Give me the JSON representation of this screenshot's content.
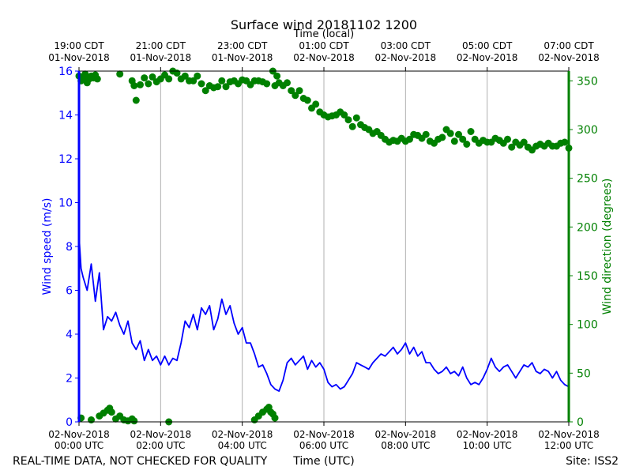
{
  "chart_data": {
    "type": "line",
    "title": "Surface wind 20181102 1200",
    "top_axis_label": "Time (local)",
    "xlabel": "Time (UTC)",
    "ylabel_left": "Wind speed (m/s)",
    "ylabel_right": "Wind direction (degrees)",
    "footer_left": "REAL-TIME DATA, NOT CHECKED FOR QUALITY",
    "footer_right": "Site: ISS2",
    "x_range_hours": [
      0,
      12
    ],
    "ylim_left": [
      0,
      16
    ],
    "ylim_right": [
      0,
      360
    ],
    "grid": "vertical",
    "colors": {
      "speed": "#0000ff",
      "direction": "#008000",
      "grid": "#b0b0b0",
      "frame": "#000000"
    },
    "bottom_ticks": [
      {
        "h": 0,
        "date": "02-Nov-2018",
        "time": "00:00 UTC"
      },
      {
        "h": 2,
        "date": "02-Nov-2018",
        "time": "02:00 UTC"
      },
      {
        "h": 4,
        "date": "02-Nov-2018",
        "time": "04:00 UTC"
      },
      {
        "h": 6,
        "date": "02-Nov-2018",
        "time": "06:00 UTC"
      },
      {
        "h": 8,
        "date": "02-Nov-2018",
        "time": "08:00 UTC"
      },
      {
        "h": 10,
        "date": "02-Nov-2018",
        "time": "10:00 UTC"
      },
      {
        "h": 12,
        "date": "02-Nov-2018",
        "time": "12:00 UTC"
      }
    ],
    "top_ticks": [
      {
        "h": 0,
        "time": "19:00 CDT",
        "date": "01-Nov-2018"
      },
      {
        "h": 2,
        "time": "21:00 CDT",
        "date": "01-Nov-2018"
      },
      {
        "h": 4,
        "time": "23:00 CDT",
        "date": "01-Nov-2018"
      },
      {
        "h": 6,
        "time": "01:00 CDT",
        "date": "02-Nov-2018"
      },
      {
        "h": 8,
        "time": "03:00 CDT",
        "date": "02-Nov-2018"
      },
      {
        "h": 10,
        "time": "05:00 CDT",
        "date": "02-Nov-2018"
      },
      {
        "h": 12,
        "time": "07:00 CDT",
        "date": "02-Nov-2018"
      }
    ],
    "left_ticks": [
      0,
      2,
      4,
      6,
      8,
      10,
      12,
      14,
      16
    ],
    "right_ticks": [
      0,
      50,
      100,
      150,
      200,
      250,
      300,
      350
    ],
    "series": [
      {
        "name": "Wind speed",
        "axis": "left",
        "style": "line",
        "x": [
          0.0,
          0.05,
          0.1,
          0.2,
          0.3,
          0.4,
          0.5,
          0.6,
          0.7,
          0.8,
          0.9,
          1.0,
          1.1,
          1.2,
          1.3,
          1.4,
          1.5,
          1.6,
          1.7,
          1.8,
          1.9,
          2.0,
          2.1,
          2.2,
          2.3,
          2.4,
          2.5,
          2.6,
          2.7,
          2.8,
          2.9,
          3.0,
          3.1,
          3.2,
          3.3,
          3.4,
          3.5,
          3.6,
          3.7,
          3.8,
          3.9,
          4.0,
          4.1,
          4.2,
          4.3,
          4.4,
          4.5,
          4.6,
          4.7,
          4.8,
          4.9,
          5.0,
          5.1,
          5.2,
          5.3,
          5.4,
          5.5,
          5.6,
          5.7,
          5.8,
          5.9,
          6.0,
          6.1,
          6.2,
          6.3,
          6.4,
          6.5,
          6.6,
          6.7,
          6.8,
          6.9,
          7.0,
          7.1,
          7.2,
          7.3,
          7.4,
          7.5,
          7.6,
          7.7,
          7.8,
          7.9,
          8.0,
          8.1,
          8.2,
          8.3,
          8.4,
          8.5,
          8.6,
          8.7,
          8.8,
          8.9,
          9.0,
          9.1,
          9.2,
          9.3,
          9.4,
          9.5,
          9.6,
          9.7,
          9.8,
          9.9,
          10.0,
          10.1,
          10.2,
          10.3,
          10.4,
          10.5,
          10.6,
          10.7,
          10.8,
          10.9,
          11.0,
          11.1,
          11.2,
          11.3,
          11.4,
          11.5,
          11.6,
          11.7,
          11.8,
          11.9,
          12.0
        ],
        "values": [
          8.5,
          7.0,
          6.6,
          6.0,
          7.2,
          5.5,
          6.8,
          4.2,
          4.8,
          4.6,
          5.0,
          4.4,
          4.0,
          4.6,
          3.6,
          3.3,
          3.7,
          2.8,
          3.3,
          2.8,
          3.0,
          2.6,
          3.0,
          2.6,
          2.9,
          2.8,
          3.6,
          4.6,
          4.3,
          4.9,
          4.2,
          5.2,
          4.9,
          5.3,
          4.2,
          4.7,
          5.6,
          4.9,
          5.3,
          4.5,
          4.0,
          4.3,
          3.6,
          3.6,
          3.1,
          2.5,
          2.6,
          2.2,
          1.7,
          1.5,
          1.4,
          1.9,
          2.7,
          2.9,
          2.6,
          2.8,
          3.0,
          2.4,
          2.8,
          2.5,
          2.7,
          2.4,
          1.8,
          1.6,
          1.7,
          1.5,
          1.6,
          1.9,
          2.2,
          2.7,
          2.6,
          2.5,
          2.4,
          2.7,
          2.9,
          3.1,
          3.0,
          3.2,
          3.4,
          3.1,
          3.3,
          3.6,
          3.1,
          3.4,
          3.0,
          3.2,
          2.7,
          2.7,
          2.4,
          2.2,
          2.3,
          2.5,
          2.2,
          2.3,
          2.1,
          2.5,
          2.0,
          1.7,
          1.8,
          1.7,
          2.0,
          2.4,
          2.9,
          2.5,
          2.3,
          2.5,
          2.6,
          2.3,
          2.0,
          2.3,
          2.6,
          2.5,
          2.7,
          2.3,
          2.2,
          2.4,
          2.3,
          2.0,
          2.3,
          1.9,
          1.7,
          1.6
        ]
      },
      {
        "name": "Wind direction",
        "axis": "right",
        "style": "dots",
        "x": [
          0.0,
          0.05,
          0.1,
          0.15,
          0.2,
          0.25,
          0.3,
          0.35,
          0.4,
          0.45,
          1.0,
          1.3,
          1.35,
          1.4,
          1.5,
          1.6,
          1.7,
          1.8,
          1.9,
          2.0,
          2.1,
          2.2,
          2.3,
          2.4,
          2.5,
          2.6,
          2.7,
          2.8,
          2.9,
          3.0,
          3.1,
          3.2,
          3.3,
          3.4,
          3.5,
          3.6,
          3.7,
          3.8,
          3.9,
          4.0,
          4.1,
          4.2,
          4.3,
          4.4,
          4.5,
          4.6,
          4.75,
          4.8,
          4.85,
          4.9,
          5.0,
          5.1,
          5.2,
          5.3,
          5.4,
          5.5,
          5.6,
          5.7,
          5.8,
          5.9,
          6.0,
          6.1,
          6.2,
          6.3,
          6.4,
          6.5,
          6.6,
          6.7,
          6.8,
          6.9,
          7.0,
          7.1,
          7.2,
          7.3,
          7.4,
          7.5,
          7.6,
          7.7,
          7.8,
          7.9,
          8.0,
          8.1,
          8.2,
          8.3,
          8.4,
          8.5,
          8.6,
          8.7,
          8.8,
          8.9,
          9.0,
          9.1,
          9.2,
          9.3,
          9.4,
          9.5,
          9.6,
          9.7,
          9.8,
          9.9,
          10.0,
          10.1,
          10.2,
          10.3,
          10.4,
          10.5,
          10.6,
          10.7,
          10.8,
          10.9,
          11.0,
          11.1,
          11.2,
          11.3,
          11.4,
          11.5,
          11.6,
          11.7,
          11.8,
          11.9,
          12.0,
          0.05,
          0.3,
          0.5,
          0.6,
          0.7,
          0.75,
          0.8,
          0.9,
          1.0,
          1.1,
          1.2,
          1.3,
          1.35,
          2.2,
          4.3,
          4.4,
          4.5,
          4.6,
          4.65,
          4.7,
          4.75,
          4.8
        ],
        "values": [
          355,
          350,
          352,
          357,
          348,
          352,
          355,
          353,
          356,
          352,
          357,
          350,
          345,
          330,
          346,
          353,
          347,
          354,
          349,
          352,
          356,
          352,
          360,
          358,
          352,
          355,
          350,
          350,
          355,
          347,
          340,
          345,
          343,
          344,
          350,
          344,
          349,
          350,
          347,
          351,
          350,
          346,
          350,
          350,
          349,
          347,
          360,
          345,
          355,
          348,
          345,
          348,
          340,
          335,
          340,
          332,
          330,
          322,
          326,
          318,
          315,
          313,
          314,
          315,
          318,
          315,
          310,
          303,
          312,
          305,
          302,
          300,
          296,
          298,
          294,
          290,
          287,
          289,
          288,
          291,
          288,
          290,
          295,
          294,
          291,
          295,
          288,
          286,
          290,
          292,
          300,
          296,
          288,
          295,
          290,
          285,
          298,
          290,
          286,
          289,
          287,
          287,
          291,
          289,
          286,
          290,
          282,
          287,
          284,
          287,
          282,
          279,
          283,
          285,
          283,
          286,
          283,
          283,
          286,
          287,
          281,
          4,
          2,
          6,
          9,
          12,
          14,
          10,
          3,
          6,
          2,
          1,
          3,
          1,
          0,
          2,
          6,
          10,
          13,
          15,
          10,
          8,
          4
        ]
      }
    ]
  }
}
